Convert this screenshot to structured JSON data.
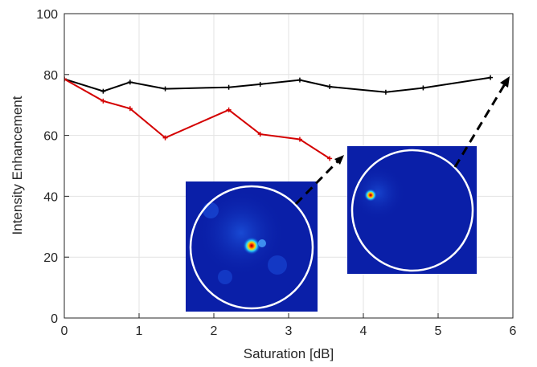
{
  "chart_data": {
    "type": "line",
    "xlabel": "Saturation [dB]",
    "ylabel": "Intensity Enhancement",
    "xlim": [
      0,
      6
    ],
    "ylim": [
      0,
      100
    ],
    "xticks": [
      "0",
      "1",
      "2",
      "3",
      "4",
      "5",
      "6"
    ],
    "yticks": [
      "0",
      "20",
      "40",
      "60",
      "80",
      "100"
    ],
    "grid": true,
    "series": [
      {
        "color": "#000000",
        "x": [
          0,
          0.52,
          0.88,
          1.35,
          2.2,
          2.62,
          3.15,
          3.55,
          4.3,
          4.8,
          5.7
        ],
        "y": [
          78.5,
          74.5,
          77.5,
          75.3,
          75.8,
          76.8,
          78.2,
          76.0,
          74.2,
          75.6,
          79.0
        ]
      },
      {
        "color": "#d40000",
        "x": [
          0,
          0.52,
          0.88,
          1.35,
          2.2,
          2.62,
          3.15,
          3.55
        ],
        "y": [
          78.5,
          71.3,
          68.8,
          59.2,
          68.4,
          60.4,
          58.7,
          52.4
        ]
      }
    ],
    "insets": [
      {
        "name": "inset-red-endpoint-spot",
        "spot": "center",
        "points_to": [
          3.55,
          52.4
        ]
      },
      {
        "name": "inset-black-endpoint-spot",
        "spot": "upper-left",
        "points_to": [
          5.7,
          79.0
        ]
      }
    ]
  }
}
